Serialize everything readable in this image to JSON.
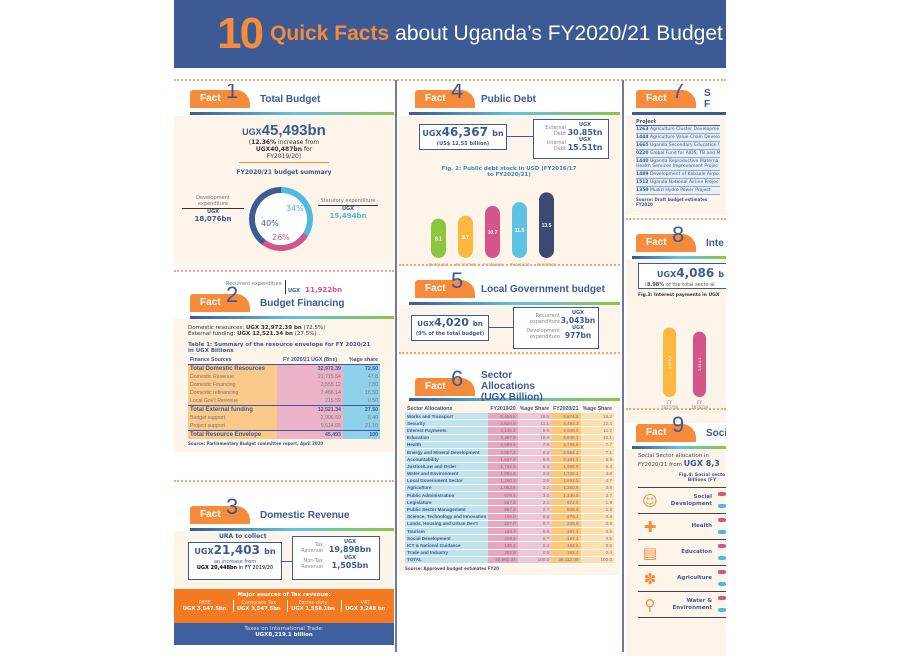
{
  "banner": {
    "number": "10",
    "highlight": "Quick Facts",
    "rest": "about Uganda’s FY2020/21 Budget"
  },
  "fact_label": "Fact",
  "fact1": {
    "num": "1",
    "title": "Total Budget",
    "headline_prefix": "UGX",
    "headline": "45,493bn",
    "increase_pct": "12.36%",
    "increase_text": "increase from",
    "prev_amount": "UGX40,487bn",
    "prev_text": "for FY2019/20",
    "summary_title": "FY2020/21 budget summary",
    "chart_data": {
      "type": "pie",
      "title": "FY2020/21 budget summary",
      "slices": [
        {
          "label": "Development expenditure",
          "percent": 40,
          "amount": "UGX 18,076bn",
          "color": "#3c5a94"
        },
        {
          "label": "Statutory expenditure",
          "percent": 34,
          "amount": "UGX 15,494bn",
          "color": "#4fbadf"
        },
        {
          "label": "Recurrent expenditure",
          "percent": 26,
          "amount": "UGX 11,922bn",
          "color": "#d4558a"
        }
      ]
    },
    "dev_label": "Development expenditure",
    "dev_ugx": "UGX",
    "dev_amount": "18,076bn",
    "dev_pct": "40%",
    "stat_label": "Statutory expenditure",
    "stat_ugx": "UGX",
    "stat_amount": "15,494bn",
    "stat_pct": "34%",
    "rec_label": "Recurrent expenditure",
    "rec_ugx": "UGX",
    "rec_amount": "11,922bn",
    "rec_pct": "26%"
  },
  "fact2": {
    "num": "2",
    "title": "Budget Financing",
    "dom_label": "Domestic resources:",
    "dom_amount": "UGX 32,972.39 bn",
    "dom_pct": "(72.5%)",
    "ext_label": "External funding:",
    "ext_amount": "UGX 12,521.34 bn",
    "ext_pct": "(27.5%) .",
    "table_title": "Table 1: Summary of the resource envelope for FY 2020/21 in UGX Billions",
    "headers": [
      "Finance Sources",
      "FY 2020/21 UGX (Bns)",
      "%age share"
    ],
    "rows": [
      {
        "label": "Total Domestic Resources",
        "value": "32,972.39",
        "share": "72.50",
        "bold": true
      },
      {
        "label": "Domestic Revenue",
        "value": "21,715.54",
        "share": "47.8",
        "bold": false
      },
      {
        "label": "Domestic Financing",
        "value": "3,555.12",
        "share": "7.80",
        "bold": false
      },
      {
        "label": "Domestic refinancing",
        "value": "7,486.14",
        "share": "16.50",
        "bold": false
      },
      {
        "label": "Local Gov't Revenue",
        "value": "215.59",
        "share": "0.50",
        "bold": false
      },
      {
        "label": "Total External funding",
        "value": "12,521.34",
        "share": "27.50",
        "bold": true
      },
      {
        "label": "Budget support",
        "value": "2,906.69",
        "share": "6.40",
        "bold": false
      },
      {
        "label": "Project support",
        "value": "9,614.65",
        "share": "21.10",
        "bold": false
      },
      {
        "label": "Total Resource Envelope",
        "value": "45,493",
        "share": "100",
        "bold": true
      }
    ],
    "source": "Source: Parliamentary Budget committee report, April 2020"
  },
  "fact3": {
    "num": "3",
    "title": "Domestic Revenue",
    "ura_label": "URA to collect",
    "prefix": "UGX",
    "amount": "21,403",
    "unit": "bn",
    "increase_text": "an increase from",
    "prev": "UGX 20,448bn",
    "prev_suffix": "in FY 2019/20",
    "tax_label": "Tax Revenue",
    "tax_ugx": "UGX",
    "tax_amount": "19,898bn",
    "nontax_label": "Non-Tax Revenue",
    "nontax_ugx": "UGX",
    "nontax_amount": "1,505bn",
    "sources_title": "Major sources of Tax revenue:",
    "sources": [
      {
        "name": "PAYE",
        "amount": "UGX 3,547.5bn"
      },
      {
        "name": "Corporate Tax",
        "amount": "UGX 3,547.5bn"
      },
      {
        "name": "Excise duty",
        "amount": "UGX 1,558.1bn"
      },
      {
        "name": "VAT",
        "amount": "UGX 3,248 bn"
      }
    ],
    "intl_label": "Taxes on International Trade:",
    "intl_amount": "UGX8,219.1 billion"
  },
  "fact4": {
    "num": "4",
    "title": "Public Debt",
    "prefix": "UGX",
    "amount": "46,367",
    "unit": "bn",
    "usd": "(US$ 12.55 billion)",
    "ext_label": "External Debt",
    "ext_ugx": "UGX",
    "ext_amount": "30.85tn",
    "int_label": "Internal Debt",
    "int_ugx": "UGX",
    "int_amount": "15.51tn",
    "chart_data": {
      "type": "bar",
      "title": "Fig. 2: Public debt stock in USD (FY2016/17 to FY2020/21)",
      "categories": [
        "FY 2016/17",
        "FY 2017/18",
        "FY 2018/19",
        "FY 2019/20",
        "FY 2020/21"
      ],
      "values": [
        8.1,
        8.7,
        10.7,
        11.5,
        13.5
      ],
      "colors": [
        "#8cc63f",
        "#fdb840",
        "#d4558a",
        "#5ec3e3",
        "#3c4a72"
      ],
      "ylim": [
        0,
        14
      ]
    }
  },
  "fact5": {
    "num": "5",
    "title": "Local Government budget",
    "prefix": "UGX",
    "amount": "4,020",
    "unit": "bn",
    "note": "(9% of the total budget)",
    "rec_label": "Recurrent expenditure",
    "rec_ugx": "UGX",
    "rec_amount": "3,043bn",
    "dev_label": "Development expenditure",
    "dev_ugx": "UGX",
    "dev_amount": "977bn"
  },
  "fact6": {
    "num": "6",
    "title": "Sector Allocations (UGX Billion)",
    "headers": [
      "Sector Allocations",
      "FY2019/20",
      "%age Share",
      "FY2020/21",
      "%age Share"
    ],
    "rows": [
      [
        "Works and Transport",
        "6,404.6",
        "19.6",
        "5,874.8",
        "16.2"
      ],
      [
        "Security",
        "3,620.8",
        "11.1",
        "4,464.3",
        "12.4"
      ],
      [
        "Interest Payments",
        "3,145.2",
        "9.6",
        "4,049.5",
        "11.2"
      ],
      [
        "Education",
        "3,397.6",
        "10.4",
        "3,646.1",
        "10.1"
      ],
      [
        "Health",
        "2,589.5",
        "7.9",
        "2,785.6",
        "7.7"
      ],
      [
        "Energy and Mineral Development",
        "3,007.2",
        "9.2",
        "2,564.3",
        "7.1"
      ],
      [
        "Accountability",
        "1,627.8",
        "5.0",
        "2,101.4",
        "5.9"
      ],
      [
        "Justice/Law and Order",
        "1,732.6",
        "5.3",
        "1,955.9",
        "5.4"
      ],
      [
        "Water and Environment",
        "1,092.8",
        "3.3",
        "1,720.1",
        "4.8"
      ],
      [
        "Local Government Sector",
        "1,260.3",
        "3.9",
        "1,692.5",
        "4.7"
      ],
      [
        "Agriculture",
        "1,053.6",
        "3.2",
        "1,360.6",
        "3.8"
      ],
      [
        "Public Administration",
        "979.1",
        "3.0",
        "1,330.9",
        "3.7"
      ],
      [
        "Legislature",
        "687.8",
        "2.1",
        "672.8",
        "1.9"
      ],
      [
        "Public Sector Management",
        "887.8",
        "2.7",
        "668.8",
        "1.9"
      ],
      [
        "Science, Technology and Innovation",
        "186.0",
        "0.6",
        "276.1",
        "0.8"
      ],
      [
        "Lands, Housing and Urban Dev't",
        "227.0",
        "0.7",
        "209.8",
        "0.6"
      ],
      [
        "Tourism",
        "193.7",
        "0.6",
        "197.4",
        "0.5"
      ],
      [
        "Social Development",
        "219.2",
        "0.7",
        "187.1",
        "0.5"
      ],
      [
        "ICT & National Guidance",
        "146.2",
        "0.4",
        "162.6",
        "0.5"
      ],
      [
        "Trade and Industry",
        "202.8",
        "0.6",
        "162.4",
        "0.4"
      ],
      [
        "TOTAL",
        "32,661.34",
        "100.0",
        "36,112.09",
        "100.0"
      ]
    ],
    "source": "Source: Approved budget estimates FY20"
  },
  "fact7": {
    "num": "7",
    "title_l1": "S",
    "title_l2": "F",
    "header": "Project",
    "rows": [
      {
        "code": "1263",
        "name": "Agriculture Cluster Developme"
      },
      {
        "code": "1444",
        "name": "Agriculture Value Chain Develo"
      },
      {
        "code": "1665",
        "name": "Uganda Secondary Education I"
      },
      {
        "code": "0220",
        "name": "Global Fund for AIDS, TB and M"
      },
      {
        "code": "1440",
        "name": "Uganda Reproductive Materna",
        "name2": "Health Services Improvement Projec"
      },
      {
        "code": "1489",
        "name": "Development of Kabaale Airpo"
      },
      {
        "code": "1512",
        "name": "Uganda National Airline Projec"
      },
      {
        "code": "1350",
        "name": "Muzizi Hydro Power Project"
      }
    ],
    "source": "Source: Draft budget estimates FY2020"
  },
  "fact8": {
    "num": "8",
    "title": "Inte",
    "prefix": "UGX",
    "amount": "4,086",
    "unit": "b",
    "pct": "8.98%",
    "note": "of the total secto al",
    "fig_title": "Fig.3: Interest payments in UGX",
    "chart_data": {
      "type": "bar",
      "title": "Fig.3: Interest payments in UGX",
      "categories": [
        "FY 2017/18",
        "FY 2018/19"
      ],
      "values": [
        2675.4,
        2514.1
      ],
      "labels": [
        "2,675.4",
        "2,514.1"
      ],
      "colors": [
        "#fdb840",
        "#d4558a"
      ]
    }
  },
  "fact9": {
    "num": "9",
    "title": "Soci",
    "intro_l1": "Social Sector allocation in",
    "intro_l2_a": "FY2020/21  from",
    "intro_l2_b": "UGX 8,3",
    "fig_title_l1": "Fig.4: Social secto",
    "fig_title_l2": "Billions (FY",
    "sectors": [
      {
        "label_l1": "Social",
        "label_l2": "Development",
        "icon": "people-icon"
      },
      {
        "label_l1": "Health",
        "label_l2": "",
        "icon": "medicine-icon"
      },
      {
        "label_l1": "Education",
        "label_l2": "",
        "icon": "book-icon"
      },
      {
        "label_l1": "Agriculture",
        "label_l2": "",
        "icon": "crops-icon"
      },
      {
        "label_l1": "Water &",
        "label_l2": "Environment",
        "icon": "tap-icon"
      }
    ]
  }
}
